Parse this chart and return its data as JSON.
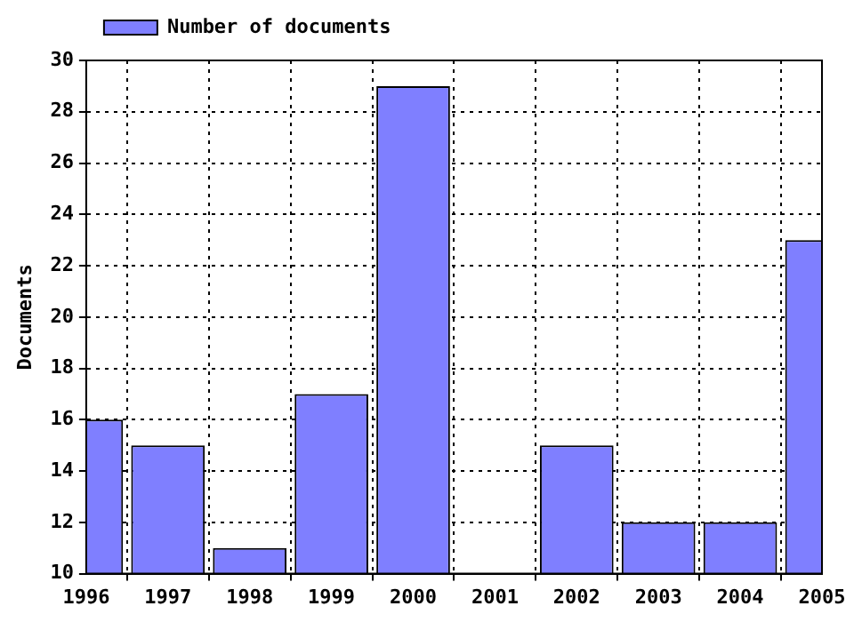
{
  "chart_data": {
    "type": "bar",
    "ylabel": "Documents",
    "x": [
      1996,
      1997,
      1998,
      1999,
      2000,
      2001,
      2002,
      2003,
      2004,
      2005
    ],
    "series": [
      {
        "name": "Number of documents",
        "color": "#7f7fff",
        "values": [
          16,
          15,
          11,
          17,
          29,
          null,
          15,
          12,
          12,
          23
        ]
      }
    ],
    "xlim": [
      1996,
      2005
    ],
    "xticks": [
      1996,
      1997,
      1998,
      1999,
      2000,
      2001,
      2002,
      2003,
      2004,
      2005
    ],
    "ylim": [
      10,
      30
    ],
    "yticks": [
      10,
      12,
      14,
      16,
      18,
      20,
      22,
      24,
      26,
      28,
      30
    ],
    "grid": true,
    "legend": "top left"
  }
}
